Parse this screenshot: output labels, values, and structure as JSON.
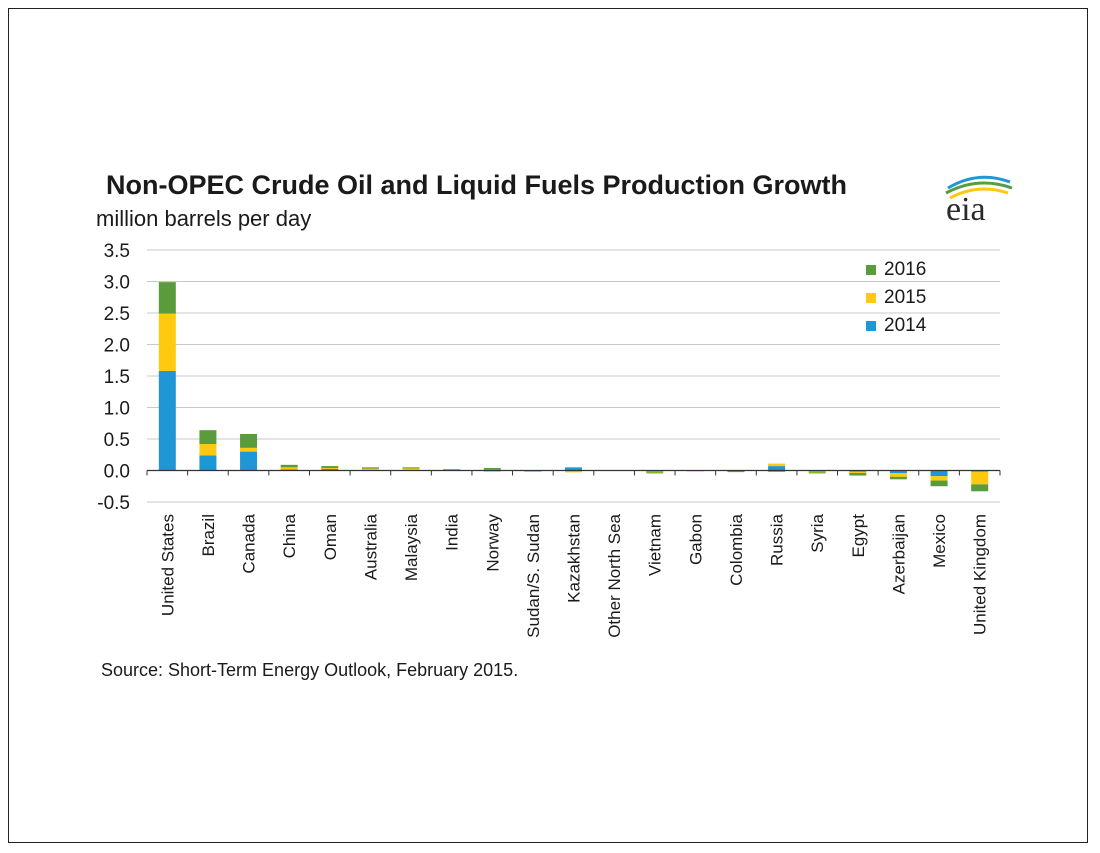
{
  "title": "Non-OPEC Crude Oil and Liquid Fuels Production Growth",
  "subtitle": "million barrels per day",
  "source": "Source: Short-Term Energy Outlook, February 2015.",
  "logo_text": "eia",
  "colors": {
    "2014": "#1f97d4",
    "2015": "#ffc90e",
    "2016": "#5a9b3c",
    "grid": "#c8c8c8",
    "axis": "#333333"
  },
  "legend": [
    {
      "name": "2016",
      "color": "#5a9b3c"
    },
    {
      "name": "2015",
      "color": "#ffc90e"
    },
    {
      "name": "2014",
      "color": "#1f97d4"
    }
  ],
  "chart_data": {
    "type": "bar",
    "stacked": true,
    "title": "Non-OPEC Crude Oil and Liquid Fuels Production Growth",
    "subtitle": "million barrels per day",
    "ylim": [
      -0.5,
      3.5
    ],
    "yticks": [
      "3.5",
      "3.0",
      "2.5",
      "2.0",
      "1.5",
      "1.0",
      "0.5",
      "0.0",
      "-0.5"
    ],
    "ytick_values": [
      3.5,
      3.0,
      2.5,
      2.0,
      1.5,
      1.0,
      0.5,
      0.0,
      -0.5
    ],
    "grid": true,
    "legend_position": "top-right",
    "categories": [
      "United States",
      "Brazil",
      "Canada",
      "China",
      "Oman",
      "Australia",
      "Malaysia",
      "India",
      "Norway",
      "Sudan/S. Sudan",
      "Kazakhstan",
      "Other North Sea",
      "Vietnam",
      "Gabon",
      "Colombia",
      "Russia",
      "Syria",
      "Egypt",
      "Azerbaijan",
      "Mexico",
      "United Kingdom"
    ],
    "series": [
      {
        "name": "2014",
        "values": [
          1.58,
          0.24,
          0.3,
          0.02,
          0.03,
          0.01,
          0.01,
          0.0,
          0.02,
          -0.01,
          0.05,
          0.0,
          -0.02,
          0.0,
          0.0,
          0.07,
          -0.02,
          -0.02,
          -0.04,
          -0.09,
          -0.02
        ]
      },
      {
        "name": "2015",
        "values": [
          0.91,
          0.18,
          0.06,
          0.03,
          0.01,
          0.02,
          0.03,
          0.01,
          -0.02,
          0.0,
          -0.03,
          0.0,
          -0.01,
          -0.01,
          -0.01,
          0.04,
          -0.01,
          -0.02,
          -0.06,
          -0.07,
          -0.2
        ]
      },
      {
        "name": "2016",
        "values": [
          0.5,
          0.22,
          0.22,
          0.04,
          0.03,
          0.02,
          0.01,
          0.01,
          0.02,
          0.0,
          0.0,
          0.0,
          -0.01,
          0.0,
          -0.01,
          -0.02,
          -0.01,
          -0.04,
          -0.04,
          -0.09,
          -0.11
        ]
      }
    ]
  }
}
